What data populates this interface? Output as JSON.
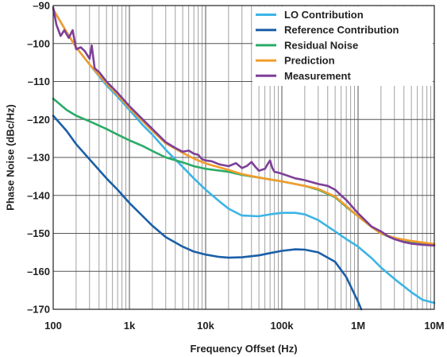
{
  "chart_data": {
    "type": "line",
    "title": "",
    "xlabel": "Frequency Offset (Hz)",
    "ylabel": "Phase Noise (dBc/Hz)",
    "x_scale": "log",
    "xlim": [
      100,
      10000000
    ],
    "ylim": [
      -170,
      -90
    ],
    "grid": true,
    "legend_position": "top-right",
    "x_ticks": [
      {
        "value": 100,
        "label": "100"
      },
      {
        "value": 1000,
        "label": "1k"
      },
      {
        "value": 10000,
        "label": "10k"
      },
      {
        "value": 100000,
        "label": "100k"
      },
      {
        "value": 1000000,
        "label": "1M"
      },
      {
        "value": 10000000,
        "label": "10M"
      }
    ],
    "y_ticks": [
      {
        "value": -90,
        "label": "–90"
      },
      {
        "value": -100,
        "label": "–100"
      },
      {
        "value": -110,
        "label": "–110"
      },
      {
        "value": -120,
        "label": "–120"
      },
      {
        "value": -130,
        "label": "–130"
      },
      {
        "value": -140,
        "label": "–140"
      },
      {
        "value": -150,
        "label": "–150"
      },
      {
        "value": -160,
        "label": "–160"
      },
      {
        "value": -170,
        "label": "–170"
      }
    ],
    "series": [
      {
        "name": "LO Contribution",
        "color": "#3cb4e6",
        "x": [
          100,
          150,
          200,
          300,
          500,
          700,
          1000,
          1500,
          2000,
          3000,
          5000,
          7000,
          10000,
          15000,
          20000,
          30000,
          50000,
          70000,
          100000,
          150000,
          200000,
          300000,
          500000,
          700000,
          1000000,
          1500000,
          2000000,
          3000000,
          5000000,
          7000000,
          10000000
        ],
        "y": [
          -91,
          -97,
          -101,
          -105.5,
          -111,
          -114,
          -117.5,
          -121.5,
          -124,
          -128,
          -132.5,
          -135.5,
          -138.5,
          -141.5,
          -143.5,
          -145.3,
          -145.5,
          -145,
          -144.6,
          -144.6,
          -145,
          -146.5,
          -149.5,
          -151.5,
          -153.5,
          -156.5,
          -159,
          -162,
          -165.5,
          -167.5,
          -168.3
        ]
      },
      {
        "name": "Reference Contribution",
        "color": "#1a5fa8",
        "x": [
          100,
          150,
          200,
          300,
          500,
          700,
          1000,
          1500,
          2000,
          3000,
          5000,
          7000,
          10000,
          15000,
          20000,
          30000,
          50000,
          70000,
          100000,
          150000,
          200000,
          300000,
          500000,
          700000,
          1000000,
          1100000
        ],
        "y": [
          -119,
          -123,
          -126.5,
          -130.5,
          -135.5,
          -138.5,
          -142,
          -145.5,
          -148,
          -151,
          -153.5,
          -154.8,
          -155.6,
          -156.2,
          -156.4,
          -156.3,
          -155.8,
          -155.2,
          -154.6,
          -154.2,
          -154.3,
          -155,
          -157.5,
          -161.5,
          -168,
          -170
        ]
      },
      {
        "name": "Residual Noise",
        "color": "#2bab68",
        "x": [
          100,
          150,
          200,
          300,
          500,
          700,
          1000,
          1500,
          2000,
          3000,
          5000,
          7000,
          10000,
          20000,
          30000,
          50000,
          70000,
          100000,
          200000,
          300000,
          500000,
          700000,
          1000000,
          1500000,
          2000000,
          3000000,
          5000000,
          10000000
        ],
        "y": [
          -114.5,
          -117.5,
          -119,
          -120.5,
          -122.5,
          -124,
          -125.5,
          -127,
          -128.3,
          -130,
          -131.3,
          -132.3,
          -133,
          -133.8,
          -134.6,
          -135.3,
          -135.8,
          -136.3,
          -137.5,
          -138.5,
          -140.5,
          -143,
          -145.5,
          -148.3,
          -150,
          -151.5,
          -152.2,
          -153
        ]
      },
      {
        "name": "Prediction",
        "color": "#f39c2a",
        "x": [
          100,
          150,
          200,
          300,
          500,
          700,
          1000,
          1500,
          2000,
          3000,
          5000,
          7000,
          10000,
          20000,
          30000,
          50000,
          70000,
          100000,
          200000,
          300000,
          500000,
          700000,
          1000000,
          1500000,
          2000000,
          3000000,
          5000000,
          10000000
        ],
        "y": [
          -91,
          -97,
          -101,
          -105.5,
          -110.5,
          -113.5,
          -117,
          -120.5,
          -123,
          -126.3,
          -128.8,
          -130.3,
          -131.6,
          -133.3,
          -134.4,
          -135.3,
          -135.8,
          -136.3,
          -137.5,
          -138.3,
          -140.3,
          -142.8,
          -145.5,
          -148.3,
          -150,
          -151.2,
          -152,
          -152.8
        ]
      },
      {
        "name": "Measurement",
        "color": "#7d3f98",
        "x": [
          100,
          110,
          125,
          140,
          160,
          180,
          200,
          230,
          260,
          300,
          320,
          350,
          400,
          500,
          700,
          1000,
          1500,
          2000,
          3000,
          4000,
          5000,
          6000,
          7000,
          8000,
          9000,
          10000,
          12000,
          15000,
          20000,
          25000,
          30000,
          35000,
          40000,
          45000,
          50000,
          60000,
          65000,
          70000,
          75000,
          80000,
          90000,
          100000,
          150000,
          200000,
          300000,
          400000,
          500000,
          600000,
          700000,
          1000000,
          1500000,
          2000000,
          2500000,
          3000000,
          4000000,
          5000000,
          7000000,
          10000000
        ],
        "y": [
          -90.5,
          -95,
          -98,
          -96.5,
          -98.5,
          -96.5,
          -101.5,
          -101,
          -102,
          -104,
          -100.5,
          -106.5,
          -107.5,
          -110,
          -113,
          -116.5,
          -120,
          -122.5,
          -126,
          -127.5,
          -128.5,
          -128.2,
          -129,
          -129.3,
          -130.5,
          -130.8,
          -131,
          -131.8,
          -132.3,
          -131.5,
          -132.8,
          -132.2,
          -131.2,
          -132.5,
          -133.5,
          -133,
          -131.8,
          -130.8,
          -132.8,
          -133.8,
          -134,
          -134.3,
          -135.5,
          -136,
          -137,
          -137.5,
          -138.5,
          -140,
          -141.2,
          -144.7,
          -148.2,
          -149.5,
          -150.8,
          -151.5,
          -152.3,
          -152.7,
          -153,
          -153.2
        ]
      }
    ]
  }
}
